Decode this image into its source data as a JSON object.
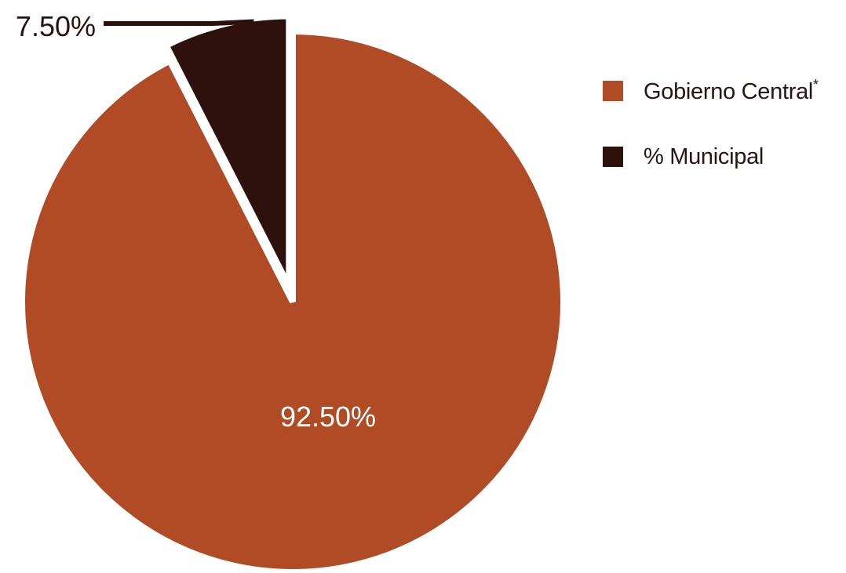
{
  "chart_data": {
    "type": "pie",
    "slices": [
      {
        "name": "Gobierno Central*",
        "value": 92.5,
        "label": "92.50%",
        "color": "#b04b26"
      },
      {
        "name": "% Municipal",
        "value": 7.5,
        "label": "7.50%",
        "color": "#2e100c"
      }
    ],
    "legend": {
      "position": "right",
      "items": [
        {
          "label": "Gobierno Central",
          "suffix": "*",
          "color": "#b04b26"
        },
        {
          "label": "% Municipal",
          "suffix": "",
          "color": "#2e100c"
        }
      ]
    },
    "start_angle": "12 o'clock",
    "direction": "clockwise",
    "exploded_slice": "% Municipal"
  }
}
